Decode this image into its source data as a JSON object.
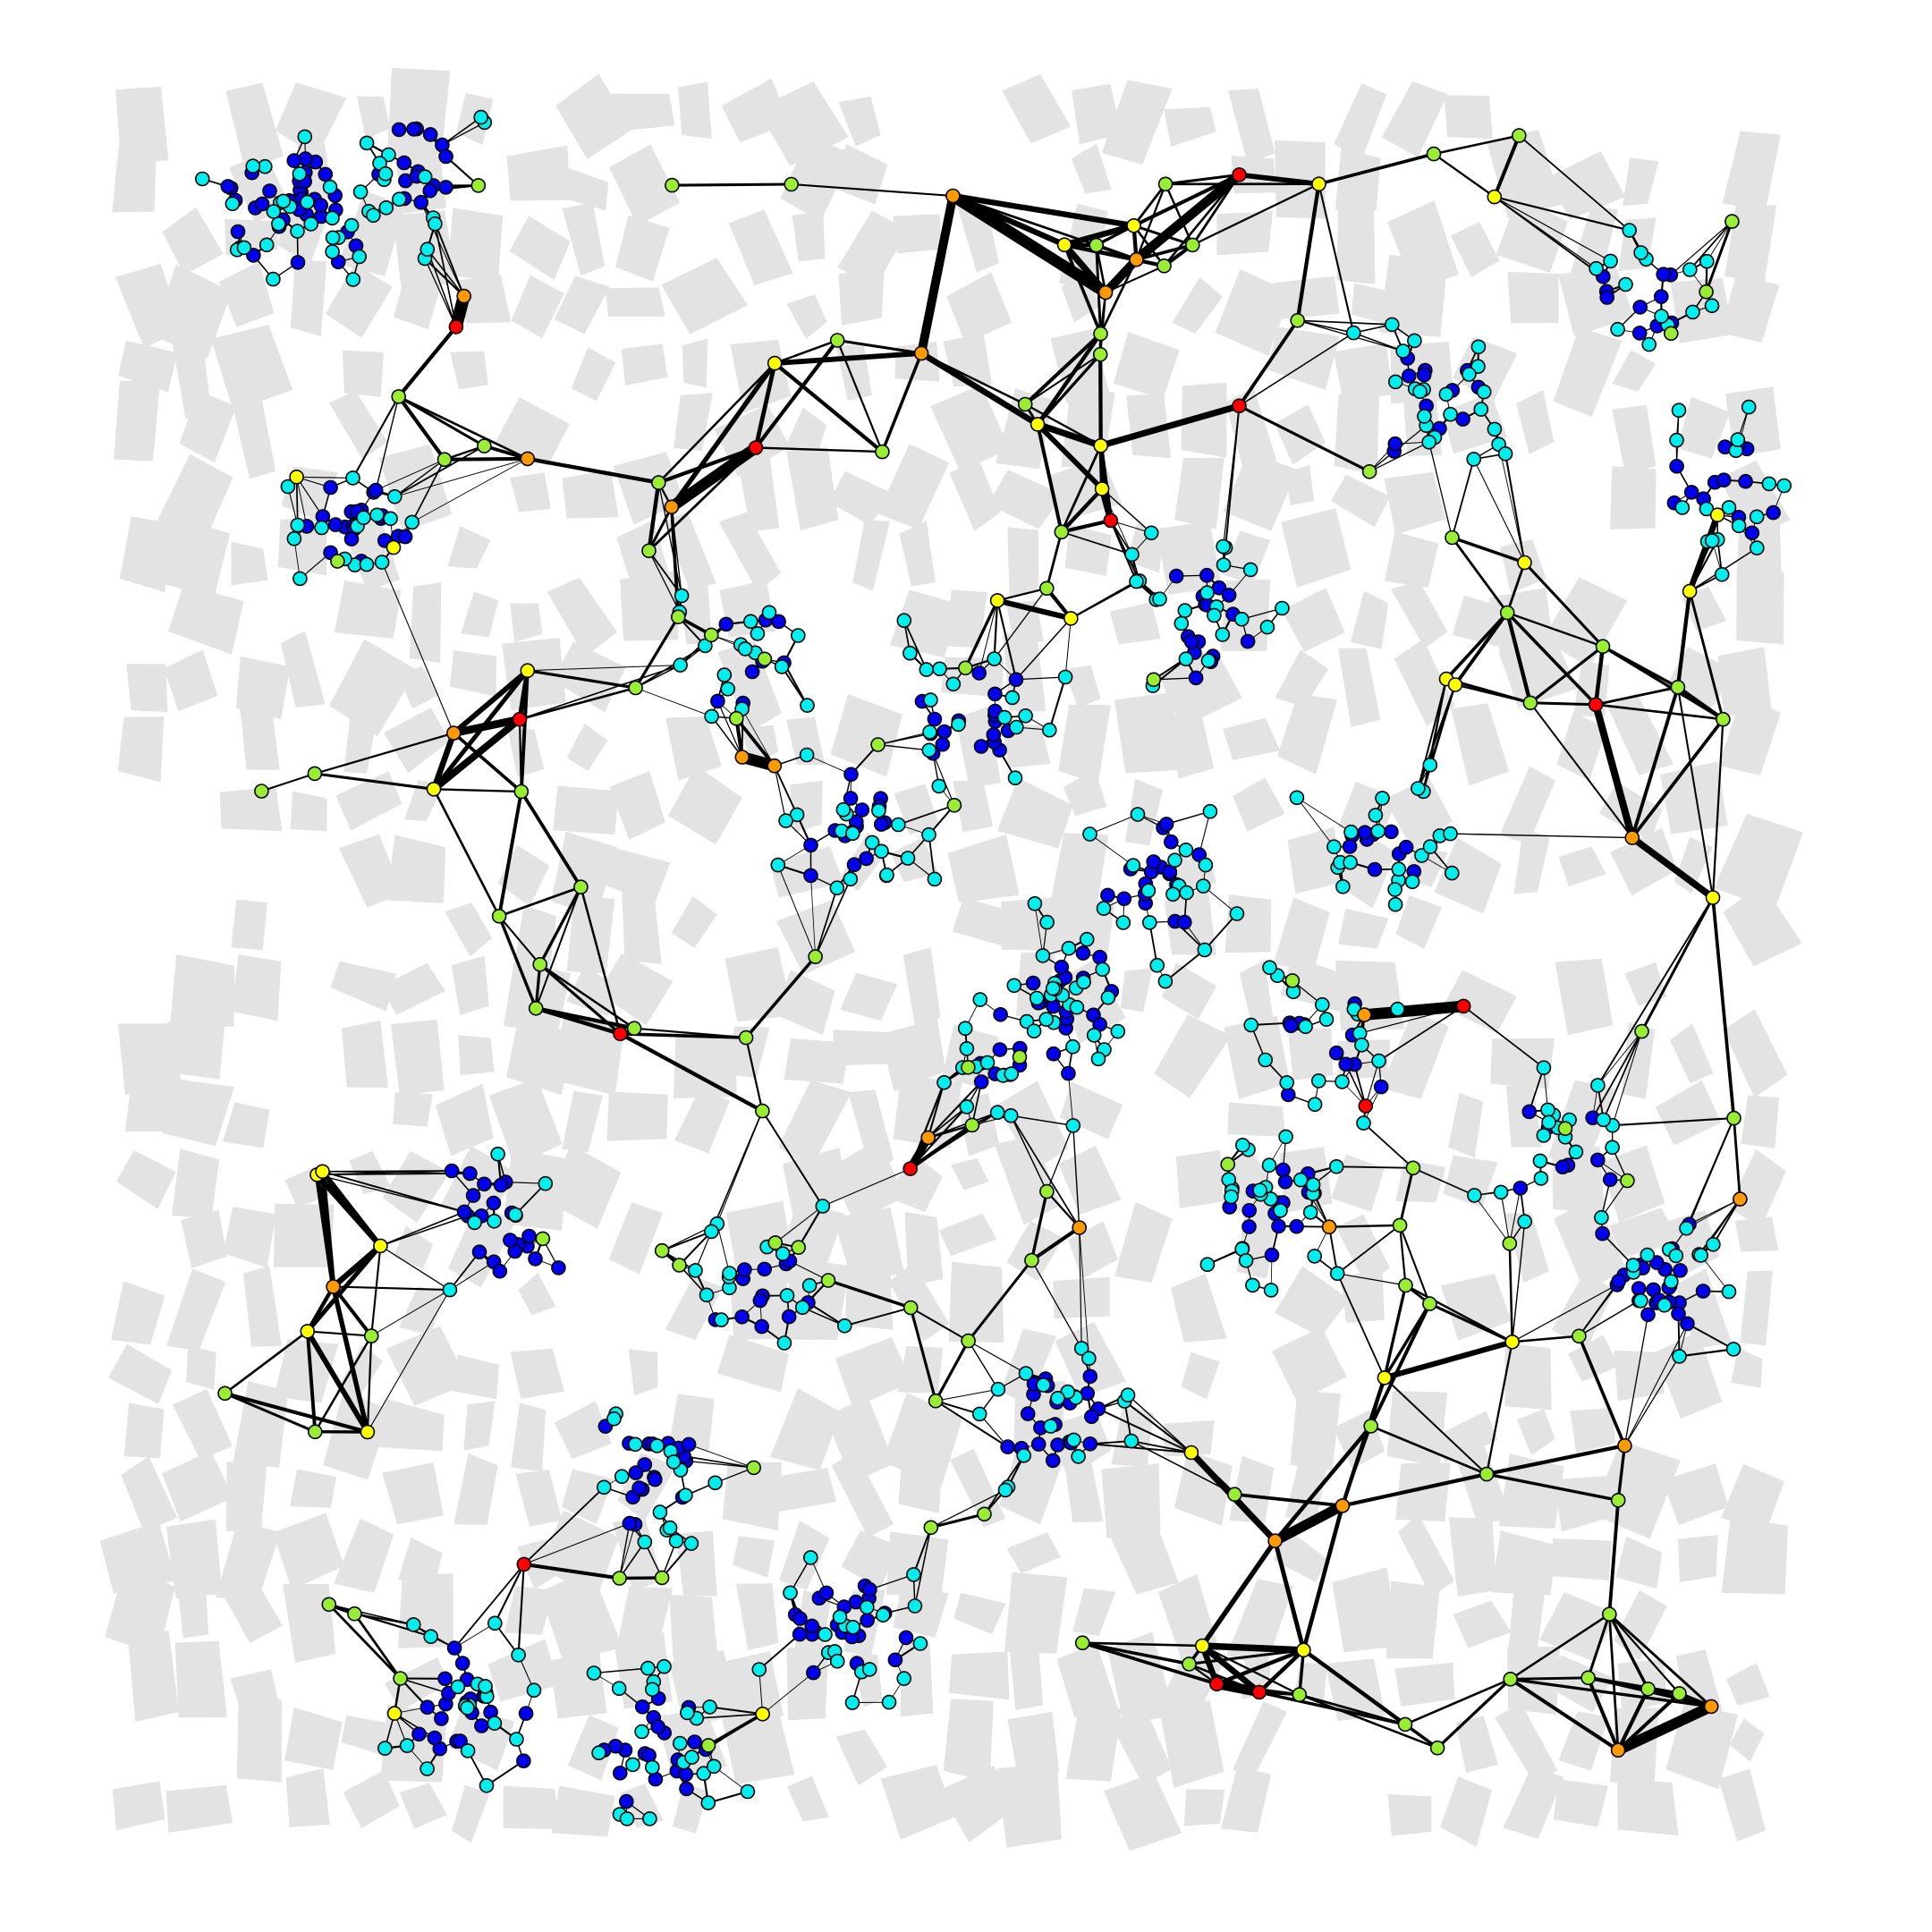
{
  "diagram": {
    "kind": "spatial network graph over city-block footprints",
    "background_color": "#ffffff",
    "block_color": "#e3e3e3",
    "edge_color": "#000000",
    "node_stroke": "#000000",
    "node_color_legend": {
      "level_1": "#0000ee",
      "level_2": "#00eeee",
      "level_3": "#99ee33",
      "level_4": "#ffff00",
      "level_5": "#ff9900",
      "level_6": "#ff0000"
    },
    "counts_by_level": {
      "level_1": 420,
      "level_2": 470,
      "level_3": 105,
      "level_4": 32,
      "level_5": 22,
      "level_6": 14
    }
  }
}
